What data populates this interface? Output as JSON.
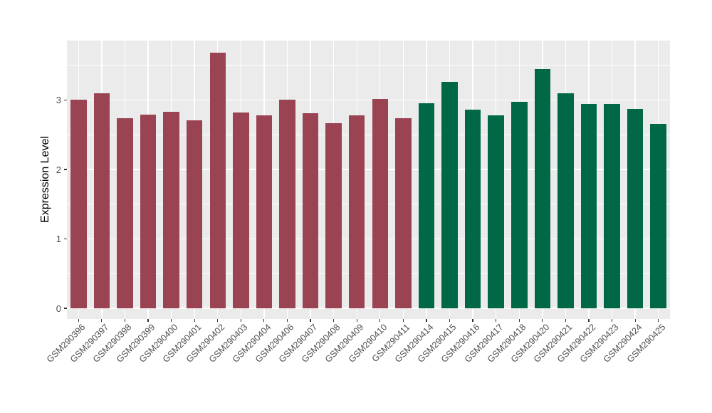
{
  "chart_data": {
    "type": "bar",
    "title": "",
    "xlabel": "",
    "ylabel": "Expression Level",
    "categories": [
      "GSM290396",
      "GSM290397",
      "GSM290398",
      "GSM290399",
      "GSM290400",
      "GSM290401",
      "GSM290402",
      "GSM290403",
      "GSM290404",
      "GSM290406",
      "GSM290407",
      "GSM290408",
      "GSM290409",
      "GSM290410",
      "GSM290411",
      "GSM290414",
      "GSM290415",
      "GSM290416",
      "GSM290417",
      "GSM290418",
      "GSM290420",
      "GSM290421",
      "GSM290422",
      "GSM290423",
      "GSM290424",
      "GSM290425"
    ],
    "values": [
      3.01,
      3.1,
      2.74,
      2.79,
      2.83,
      2.71,
      3.68,
      2.82,
      2.78,
      3.01,
      2.81,
      2.67,
      2.78,
      3.02,
      2.74,
      2.95,
      3.26,
      2.86,
      2.78,
      2.97,
      3.45,
      3.1,
      2.94,
      2.94,
      2.87,
      2.66
    ],
    "bar_colors_hex": [
      "#9A4352",
      "#9A4352",
      "#9A4352",
      "#9A4352",
      "#9A4352",
      "#9A4352",
      "#9A4352",
      "#9A4352",
      "#9A4352",
      "#9A4352",
      "#9A4352",
      "#9A4352",
      "#9A4352",
      "#9A4352",
      "#9A4352",
      "#006847",
      "#006847",
      "#006847",
      "#006847",
      "#006847",
      "#006847",
      "#006847",
      "#006847",
      "#006847",
      "#006847",
      "#006847"
    ],
    "color_groups": [
      {
        "color": "#9A4352",
        "first_category": "GSM290396",
        "last_category": "GSM290411",
        "count": 15
      },
      {
        "color": "#006847",
        "first_category": "GSM290414",
        "last_category": "GSM290425",
        "count": 11
      }
    ],
    "ylim": [
      0,
      3.89
    ],
    "yticks": [
      0,
      1,
      2,
      3
    ],
    "yticks_minor": [
      0.5,
      1.5,
      2.5,
      3.5
    ],
    "grid": "white major and minor gridlines on gray panel",
    "legend_position": "none",
    "styles": {
      "figure_background": "#FFFFFF",
      "panel_background": "#EBEBEB",
      "grid_color": "#FFFFFF",
      "tick_mark_color": "#333333",
      "tick_label_color": "#4D4D4D",
      "axis_title_color": "#000000"
    }
  }
}
